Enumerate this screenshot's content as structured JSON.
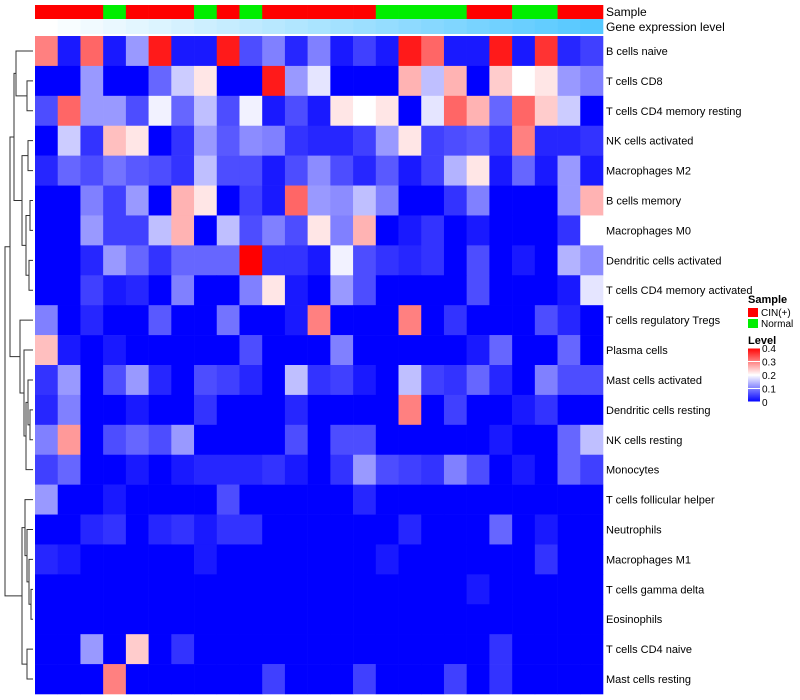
{
  "chart_data": {
    "type": "heatmap",
    "title": "",
    "top_annotation_labels": [
      "Sample",
      "Gene expression level"
    ],
    "sample_colors": {
      "CIN(+)": "#ff0000",
      "Normal": "#00ee00"
    },
    "samples": [
      "CIN(+)",
      "CIN(+)",
      "CIN(+)",
      "Normal",
      "CIN(+)",
      "CIN(+)",
      "CIN(+)",
      "Normal",
      "CIN(+)",
      "Normal",
      "CIN(+)",
      "CIN(+)",
      "CIN(+)",
      "CIN(+)",
      "CIN(+)",
      "Normal",
      "Normal",
      "Normal",
      "Normal",
      "CIN(+)",
      "CIN(+)",
      "Normal",
      "Normal",
      "CIN(+)",
      "CIN(+)"
    ],
    "expression_gradient": [
      "#ffffff",
      "#55c8ff"
    ],
    "rows": [
      "B cells naive",
      "T cells CD8",
      "T cells CD4 memory resting",
      "NK cells activated",
      "Macrophages M2",
      "B cells memory",
      "Macrophages M0",
      "Dendritic cells activated",
      "T cells CD4 memory activated",
      "T cells regulatory  Tregs",
      "Plasma cells",
      "Mast cells activated",
      "Dendritic cells resting",
      "NK cells resting",
      "Monocytes",
      "T cells follicular helper",
      "Neutrophils",
      "Macrophages M1",
      "T cells gamma delta",
      "Eosinophils",
      "T cells CD4 naive",
      "Mast cells resting"
    ],
    "values": [
      [
        0.3,
        0.02,
        0.32,
        0.02,
        0.12,
        0.38,
        0.02,
        0.02,
        0.38,
        0.06,
        0.1,
        0.03,
        0.1,
        0.02,
        0.05,
        0.02,
        0.38,
        0.32,
        0.02,
        0.02,
        0.38,
        0.02,
        0.36,
        0.03,
        0.05
      ],
      [
        0.0,
        0.0,
        0.12,
        0.0,
        0.0,
        0.08,
        0.16,
        0.22,
        0.0,
        0.0,
        0.38,
        0.12,
        0.18,
        0.0,
        0.0,
        0.0,
        0.26,
        0.15,
        0.26,
        0.0,
        0.24,
        0.2,
        0.22,
        0.12,
        0.1
      ],
      [
        0.06,
        0.32,
        0.12,
        0.12,
        0.06,
        0.19,
        0.08,
        0.15,
        0.06,
        0.19,
        0.02,
        0.06,
        0.02,
        0.22,
        0.2,
        0.22,
        0.0,
        0.18,
        0.32,
        0.26,
        0.08,
        0.32,
        0.24,
        0.16,
        0.0
      ],
      [
        0.0,
        0.16,
        0.04,
        0.25,
        0.22,
        0.0,
        0.04,
        0.12,
        0.07,
        0.11,
        0.1,
        0.04,
        0.03,
        0.03,
        0.05,
        0.12,
        0.22,
        0.05,
        0.06,
        0.07,
        0.04,
        0.3,
        0.03,
        0.03,
        0.04
      ],
      [
        0.03,
        0.08,
        0.06,
        0.09,
        0.07,
        0.06,
        0.04,
        0.15,
        0.06,
        0.06,
        0.02,
        0.06,
        0.11,
        0.06,
        0.03,
        0.07,
        0.02,
        0.05,
        0.14,
        0.22,
        0.02,
        0.08,
        0.02,
        0.12,
        0.02
      ],
      [
        0.0,
        0.0,
        0.1,
        0.05,
        0.12,
        0.0,
        0.26,
        0.22,
        0.0,
        0.05,
        0.02,
        0.32,
        0.12,
        0.11,
        0.15,
        0.1,
        0.0,
        0.0,
        0.04,
        0.1,
        0.0,
        0.0,
        0.0,
        0.12,
        0.26
      ],
      [
        0.0,
        0.0,
        0.12,
        0.05,
        0.05,
        0.15,
        0.26,
        0.0,
        0.15,
        0.06,
        0.1,
        0.06,
        0.22,
        0.1,
        0.26,
        0.0,
        0.02,
        0.04,
        0.0,
        0.02,
        0.0,
        0.0,
        0.0,
        0.04,
        0.2
      ],
      [
        0.0,
        0.0,
        0.03,
        0.12,
        0.08,
        0.04,
        0.08,
        0.08,
        0.08,
        0.4,
        0.04,
        0.04,
        0.02,
        0.19,
        0.06,
        0.04,
        0.03,
        0.04,
        0.0,
        0.06,
        0.0,
        0.02,
        0.0,
        0.14,
        0.11
      ],
      [
        0.0,
        0.0,
        0.05,
        0.02,
        0.03,
        0.0,
        0.1,
        0.0,
        0.0,
        0.1,
        0.22,
        0.02,
        0.0,
        0.12,
        0.06,
        0.0,
        0.0,
        0.0,
        0.0,
        0.06,
        0.0,
        0.0,
        0.0,
        0.02,
        0.18
      ],
      [
        0.1,
        0.0,
        0.03,
        0.0,
        0.0,
        0.07,
        0.0,
        0.0,
        0.09,
        0.0,
        0.0,
        0.02,
        0.3,
        0.0,
        0.0,
        0.0,
        0.3,
        0.0,
        0.04,
        0.0,
        0.0,
        0.0,
        0.06,
        0.03,
        0.0
      ],
      [
        0.25,
        0.02,
        0.0,
        0.02,
        0.0,
        0.0,
        0.0,
        0.0,
        0.0,
        0.06,
        0.0,
        0.0,
        0.0,
        0.1,
        0.0,
        0.0,
        0.0,
        0.0,
        0.0,
        0.02,
        0.08,
        0.0,
        0.0,
        0.08,
        0.0
      ],
      [
        0.04,
        0.12,
        0.0,
        0.06,
        0.12,
        0.03,
        0.0,
        0.06,
        0.05,
        0.03,
        0.0,
        0.15,
        0.04,
        0.05,
        0.02,
        0.0,
        0.15,
        0.05,
        0.04,
        0.08,
        0.03,
        0.0,
        0.1,
        0.06,
        0.06
      ],
      [
        0.03,
        0.1,
        0.0,
        0.0,
        0.02,
        0.0,
        0.0,
        0.04,
        0.0,
        0.0,
        0.0,
        0.03,
        0.0,
        0.0,
        0.0,
        0.0,
        0.3,
        0.0,
        0.05,
        0.0,
        0.0,
        0.02,
        0.04,
        0.0,
        0.0
      ],
      [
        0.1,
        0.28,
        0.0,
        0.06,
        0.08,
        0.06,
        0.12,
        0.0,
        0.0,
        0.0,
        0.0,
        0.06,
        0.0,
        0.06,
        0.06,
        0.0,
        0.0,
        0.0,
        0.0,
        0.0,
        0.02,
        0.0,
        0.0,
        0.08,
        0.15
      ],
      [
        0.05,
        0.08,
        0.0,
        0.0,
        0.02,
        0.0,
        0.02,
        0.03,
        0.03,
        0.03,
        0.04,
        0.02,
        0.0,
        0.04,
        0.12,
        0.06,
        0.05,
        0.04,
        0.1,
        0.06,
        0.0,
        0.02,
        0.0,
        0.08,
        0.05
      ],
      [
        0.12,
        0.0,
        0.0,
        0.02,
        0.0,
        0.0,
        0.0,
        0.0,
        0.06,
        0.0,
        0.0,
        0.0,
        0.0,
        0.0,
        0.03,
        0.0,
        0.0,
        0.0,
        0.0,
        0.0,
        0.0,
        0.0,
        0.0,
        0.0,
        0.0
      ],
      [
        0.0,
        0.0,
        0.03,
        0.04,
        0.0,
        0.03,
        0.04,
        0.02,
        0.04,
        0.04,
        0.0,
        0.0,
        0.0,
        0.0,
        0.0,
        0.0,
        0.03,
        0.0,
        0.0,
        0.0,
        0.08,
        0.0,
        0.02,
        0.0,
        0.0
      ],
      [
        0.03,
        0.02,
        0.0,
        0.0,
        0.0,
        0.0,
        0.0,
        0.02,
        0.0,
        0.0,
        0.0,
        0.0,
        0.0,
        0.0,
        0.0,
        0.02,
        0.0,
        0.0,
        0.0,
        0.0,
        0.0,
        0.0,
        0.04,
        0.0,
        0.0
      ],
      [
        0.0,
        0.0,
        0.0,
        0.0,
        0.0,
        0.0,
        0.0,
        0.0,
        0.0,
        0.0,
        0.0,
        0.0,
        0.0,
        0.0,
        0.0,
        0.0,
        0.0,
        0.0,
        0.0,
        0.02,
        0.0,
        0.0,
        0.0,
        0.0,
        0.0
      ],
      [
        0.0,
        0.0,
        0.0,
        0.0,
        0.0,
        0.0,
        0.0,
        0.0,
        0.0,
        0.0,
        0.0,
        0.0,
        0.0,
        0.0,
        0.0,
        0.0,
        0.0,
        0.0,
        0.0,
        0.0,
        0.0,
        0.0,
        0.0,
        0.0,
        0.0
      ],
      [
        0.0,
        0.0,
        0.12,
        0.0,
        0.24,
        0.0,
        0.04,
        0.0,
        0.0,
        0.0,
        0.0,
        0.0,
        0.0,
        0.0,
        0.0,
        0.0,
        0.0,
        0.0,
        0.0,
        0.0,
        0.04,
        0.0,
        0.0,
        0.0,
        0.0
      ],
      [
        0.0,
        0.0,
        0.0,
        0.3,
        0.0,
        0.0,
        0.0,
        0.0,
        0.0,
        0.0,
        0.05,
        0.0,
        0.0,
        0.0,
        0.05,
        0.0,
        0.0,
        0.0,
        0.05,
        0.0,
        0.04,
        0.0,
        0.0,
        0.0,
        0.0
      ]
    ],
    "color_scale": {
      "low": "#0000ff",
      "mid": "#ffffff",
      "high": "#ff0000",
      "min": 0,
      "max": 0.4
    },
    "legend": {
      "sample_title": "Sample",
      "sample_items": [
        {
          "label": "CIN(+)",
          "color": "#ff0000"
        },
        {
          "label": "Normal",
          "color": "#00ee00"
        }
      ],
      "level_title": "Level",
      "level_ticks": [
        "0.4",
        "0.3",
        "0.2",
        "0.1",
        "0"
      ],
      "level_tick_values": [
        0.4,
        0.3,
        0.2,
        0.1,
        0
      ]
    }
  }
}
